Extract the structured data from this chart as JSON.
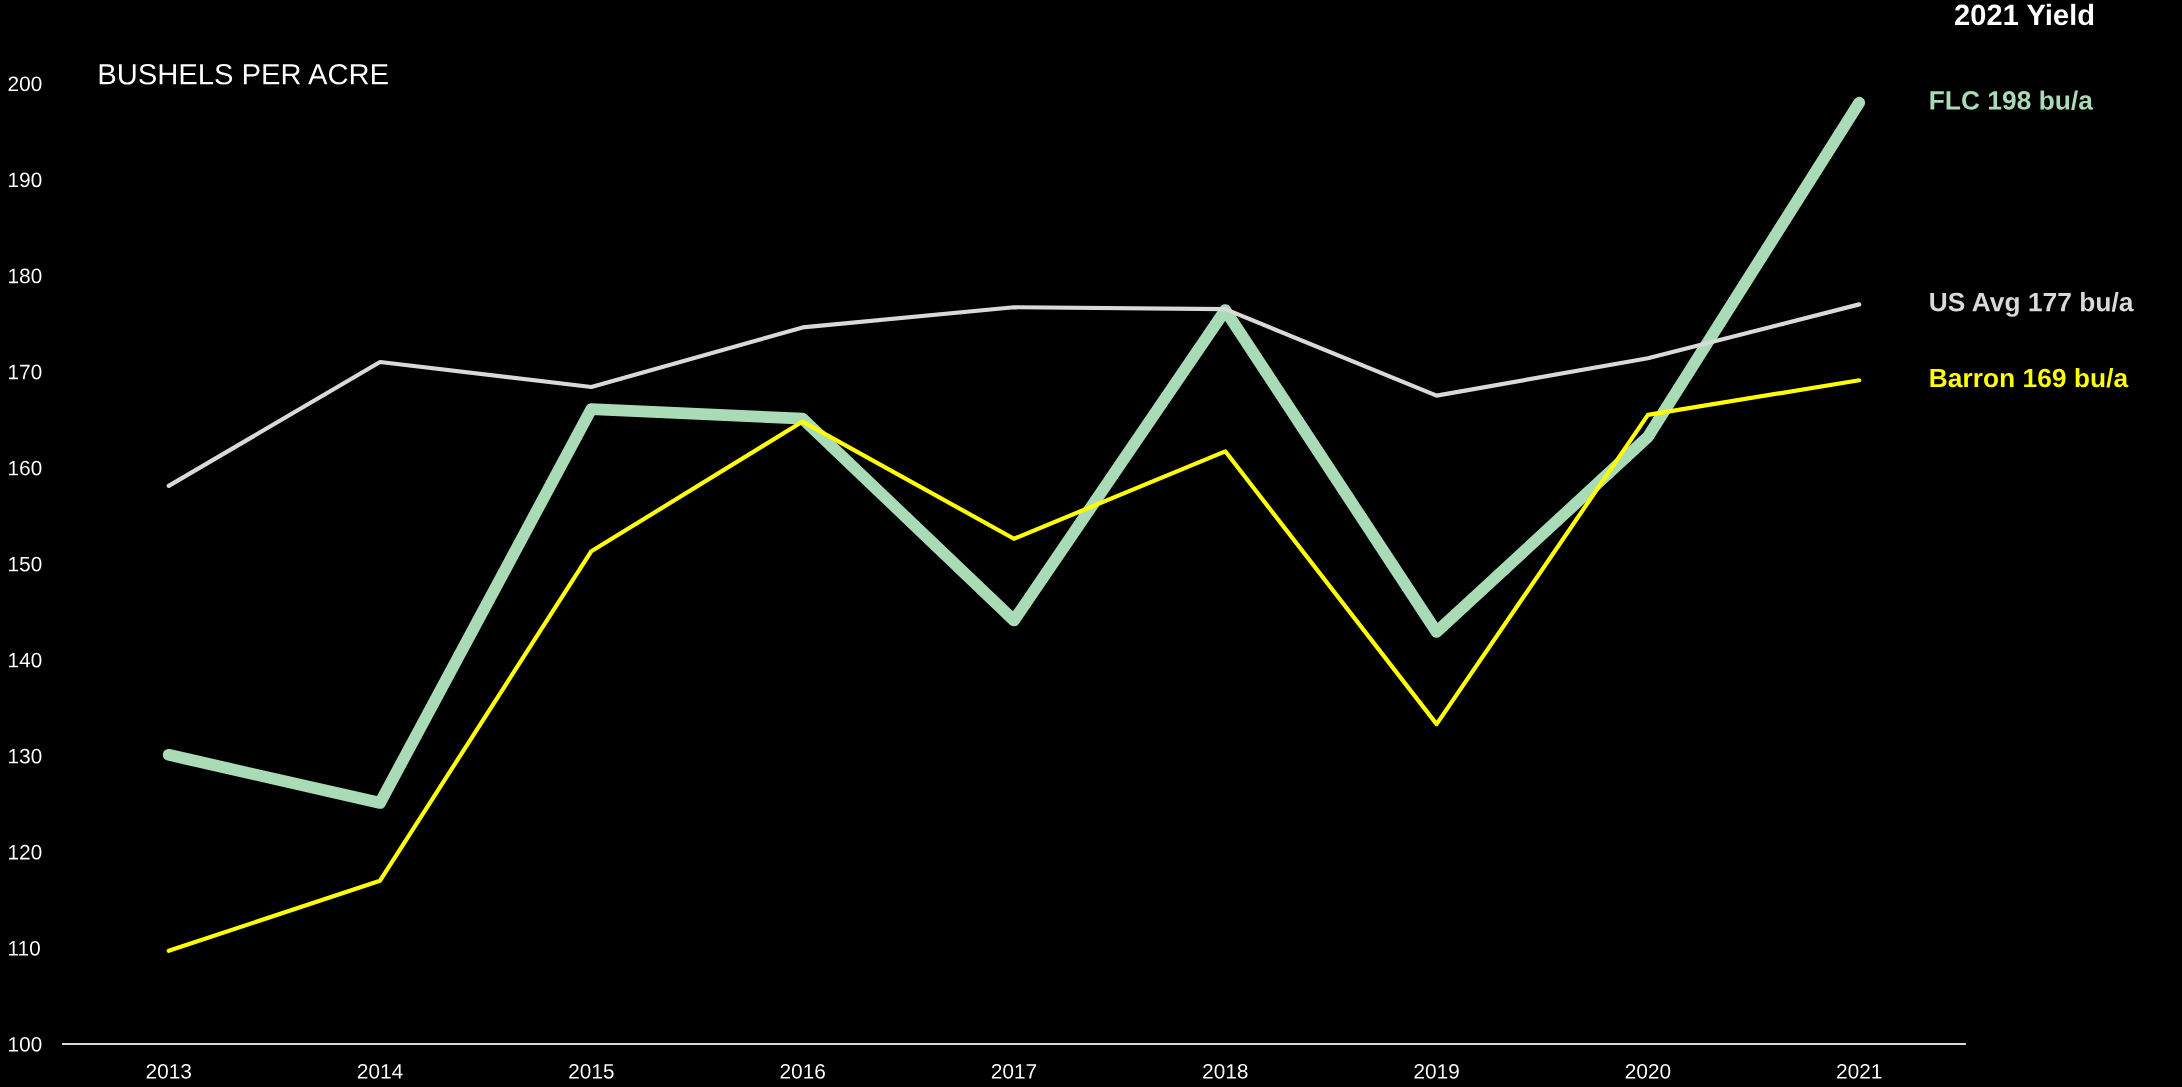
{
  "chart_data": {
    "type": "line",
    "ylabel": "BUSHELS PER ACRE",
    "annotations": [
      "2021 Yield"
    ],
    "categories": [
      "2013",
      "2014",
      "2015",
      "2016",
      "2017",
      "2018",
      "2019",
      "2020",
      "2021"
    ],
    "series": [
      {
        "name": "FLC 198 bu/a",
        "color": "#a9dcb6",
        "values": [
          130.1,
          125.1,
          166.1,
          165.1,
          144.1,
          176.4,
          142.9,
          163.2,
          198
        ]
      },
      {
        "name": "US Avg 177 bu/a",
        "color": "#d9d9d9",
        "values": [
          158.1,
          171.0,
          168.4,
          174.6,
          176.7,
          176.5,
          167.5,
          171.4,
          177.0
        ]
      },
      {
        "name": "Barron 169 bu/a",
        "color": "#ffff00",
        "values": [
          109.7,
          117.0,
          151.3,
          164.8,
          152.6,
          161.7,
          133.3,
          165.5,
          169.1
        ]
      }
    ],
    "ylim": [
      100,
      200
    ],
    "yticks": [
      100,
      110,
      120,
      130,
      140,
      150,
      160,
      170,
      180,
      190,
      200
    ],
    "grid": false,
    "legend": false,
    "line_style": "solid"
  }
}
